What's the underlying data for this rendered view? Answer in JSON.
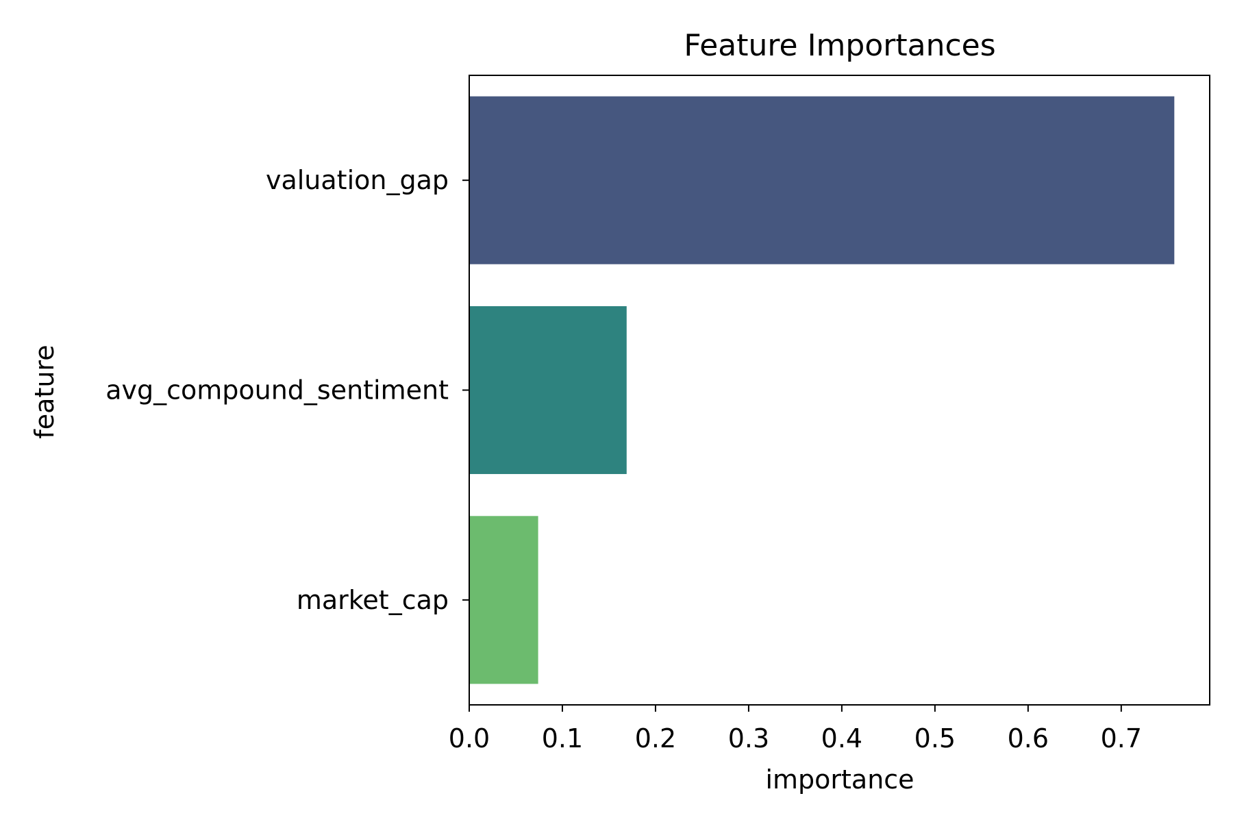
{
  "chart_data": {
    "type": "bar",
    "orientation": "horizontal",
    "title": "Feature Importances",
    "xlabel": "importance",
    "ylabel": "feature",
    "categories": [
      "valuation_gap",
      "avg_compound_sentiment",
      "market_cap"
    ],
    "values": [
      0.757,
      0.169,
      0.074
    ],
    "colors": [
      "#46577f",
      "#2e837f",
      "#6cbb6e"
    ],
    "xlim": [
      0,
      0.795
    ],
    "xticks": [
      0.0,
      0.1,
      0.2,
      0.3,
      0.4,
      0.5,
      0.6,
      0.7
    ],
    "xtick_labels": [
      "0.0",
      "0.1",
      "0.2",
      "0.3",
      "0.4",
      "0.5",
      "0.6",
      "0.7"
    ],
    "grid": false,
    "legend": "none"
  }
}
